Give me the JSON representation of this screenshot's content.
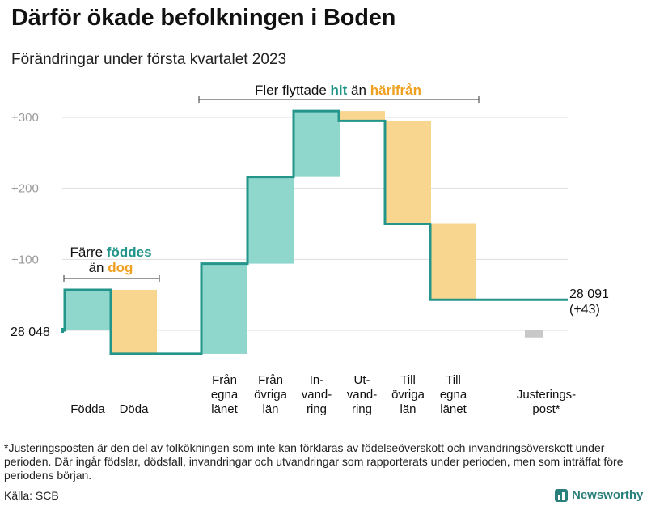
{
  "title": "Därför ökade befolkningen i Boden",
  "subtitle": "Förändringar under första kvartalet 2023",
  "annotations": {
    "fewer_born": {
      "line1_prefix": "Färre ",
      "line1_em": "föddes",
      "line2_prefix": "än ",
      "line2_em": "dog"
    },
    "more_moved": {
      "prefix": "Fler flyttade ",
      "em1": "hit",
      "middle": " än ",
      "em2": "härifrån"
    }
  },
  "start_label": "28 048",
  "end_label": {
    "line1": "28 091",
    "line2": "(+43)"
  },
  "footnote": "*Justeringsposten är den del av folkökningen som inte kan förklaras av födelseöverskott och invandringsöverskott under perioden. Där ingår födslar, dödsfall, invandringar och utvandringar som rapporterats under perioden, men som inträffat före periodens början.",
  "source": "Källa: SCB",
  "brand": "Newsworthy",
  "colors": {
    "increase": "#8fd6cc",
    "decrease": "#f9d68f",
    "adjustment": "#c8c8c8",
    "line": "#23958a",
    "teal_text": "#1f9488",
    "orange_text": "#f0a020",
    "grid": "#dddddd",
    "tick": "#9a9a9a"
  },
  "chart_data": {
    "type": "waterfall",
    "title": "Därför ökade befolkningen i Boden",
    "subtitle": "Förändringar under första kvartalet 2023",
    "baseline": 28048,
    "ylim": [
      -32,
      310
    ],
    "yticks": [
      {
        "value": 100,
        "label": "+100"
      },
      {
        "value": 200,
        "label": "+200"
      },
      {
        "value": 300,
        "label": "+300"
      }
    ],
    "steps": [
      {
        "name": "Födda",
        "label_lines": [
          "Födda"
        ],
        "value": 57,
        "kind": "increase"
      },
      {
        "name": "Döda",
        "label_lines": [
          "Döda"
        ],
        "value": -90,
        "kind": "decrease"
      },
      {
        "name": "Från egna länet",
        "label_lines": [
          "Från",
          "egna",
          "länet"
        ],
        "value": 127,
        "kind": "increase"
      },
      {
        "name": "Från övriga län",
        "label_lines": [
          "Från",
          "övriga",
          "län"
        ],
        "value": 122,
        "kind": "increase"
      },
      {
        "name": "Invandring",
        "label_lines": [
          "In-",
          "vand-",
          "ring"
        ],
        "value": 93,
        "kind": "increase"
      },
      {
        "name": "Utvandring",
        "label_lines": [
          "Ut-",
          "vand-",
          "ring"
        ],
        "value": -14,
        "kind": "decrease"
      },
      {
        "name": "Till övriga län",
        "label_lines": [
          "Till",
          "övriga",
          "län"
        ],
        "value": -145,
        "kind": "decrease"
      },
      {
        "name": "Till egna länet",
        "label_lines": [
          "Till",
          "egna",
          "länet"
        ],
        "value": -107,
        "kind": "decrease"
      },
      {
        "name": "Justeringspost*",
        "label_lines": [
          "Justerings-",
          "post*"
        ],
        "value": 0,
        "kind": "adjustment",
        "bar_range": [
          -10,
          0
        ]
      }
    ],
    "end_value": 28091,
    "end_change": 43
  }
}
